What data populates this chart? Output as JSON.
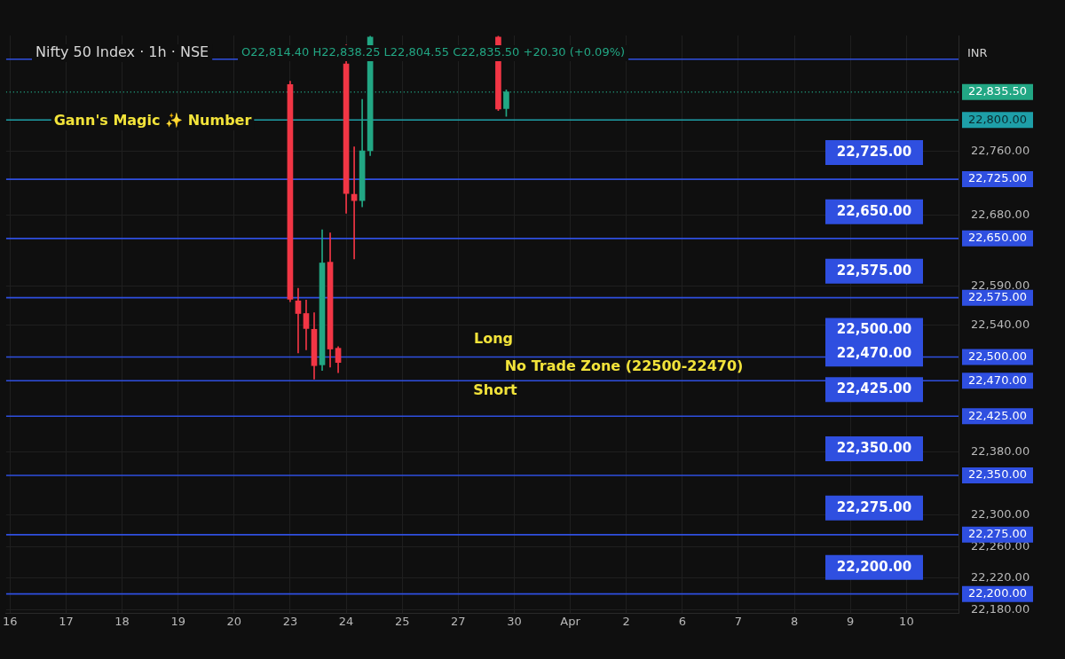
{
  "chart_data": {
    "type": "candlestick",
    "title": "Nifty 50 Index · 1h · NSE",
    "subtitle": "O22,814.40 H22,838.25 L22,804.55 C22,835.50 +20.30 (+0.09%)",
    "categories": [
      "16",
      null,
      null,
      null,
      null,
      null,
      null,
      "17",
      null,
      null,
      null,
      null,
      null,
      null,
      "18",
      null,
      null,
      null,
      null,
      null,
      null,
      "19",
      null,
      null,
      null,
      null,
      null,
      null,
      "20",
      null,
      null,
      null,
      null,
      null,
      null,
      "23",
      null,
      null,
      null,
      null,
      null,
      null,
      "24",
      null,
      null,
      null,
      null,
      null,
      null,
      "25",
      null,
      null,
      null,
      null,
      null,
      null,
      "27",
      null,
      null,
      null,
      null,
      null,
      null,
      "30",
      null,
      null,
      null,
      null,
      null,
      null,
      "Apr",
      null,
      null,
      null,
      null,
      null,
      null,
      "2",
      null,
      null,
      null,
      null,
      null,
      null,
      "6",
      null,
      null,
      null,
      null,
      null,
      null,
      "7",
      null,
      null,
      null,
      null,
      null,
      null,
      "8",
      null,
      null,
      null,
      null,
      null,
      null,
      "9",
      null,
      null,
      null,
      null,
      null,
      null,
      "10",
      null,
      null,
      null,
      null,
      null,
      null
    ],
    "ohlc": [
      null,
      null,
      null,
      null,
      null,
      null,
      null,
      null,
      null,
      null,
      null,
      null,
      null,
      null,
      null,
      null,
      null,
      null,
      null,
      null,
      null,
      null,
      null,
      null,
      null,
      null,
      null,
      null,
      null,
      null,
      null,
      null,
      null,
      null,
      null,
      [
        22845,
        22849,
        22570,
        22573
      ],
      [
        22571,
        22587,
        22505,
        22555
      ],
      [
        22555,
        22572,
        22509,
        22536
      ],
      [
        22535,
        22556,
        22472,
        22489
      ],
      [
        22490,
        22661,
        22483,
        22619
      ],
      [
        22620,
        22657,
        22487,
        22510
      ],
      [
        22511,
        22513,
        22480,
        22493
      ],
      [
        22871,
        22895,
        22682,
        22707
      ],
      [
        22706,
        22766,
        22624,
        22698
      ],
      [
        22698,
        22826,
        22690,
        22761
      ],
      [
        22761,
        22906,
        22755,
        22905
      ],
      null,
      null,
      null,
      null,
      null,
      null,
      null,
      null,
      null,
      null,
      null,
      null,
      null,
      null,
      null,
      [
        22905,
        22906,
        22812,
        22814
      ],
      [
        22814.4,
        22838.25,
        22804.55,
        22835.5
      ],
      null,
      null,
      null,
      null,
      null,
      null,
      null,
      null,
      null,
      null,
      null,
      null,
      null,
      null,
      null,
      null,
      null,
      null,
      null,
      null,
      null,
      null,
      null,
      null,
      null,
      null,
      null,
      null,
      null,
      null,
      null,
      null,
      null,
      null,
      null,
      null,
      null,
      null,
      null,
      null,
      null,
      null,
      null,
      null,
      null,
      null,
      null,
      null,
      null,
      null,
      null,
      null,
      null,
      null,
      null,
      null
    ],
    "colors": [
      null,
      null,
      null,
      null,
      null,
      null,
      null,
      null,
      null,
      null,
      null,
      null,
      null,
      null,
      null,
      null,
      null,
      null,
      null,
      null,
      null,
      null,
      null,
      null,
      null,
      null,
      null,
      null,
      null,
      null,
      null,
      null,
      null,
      null,
      null,
      "#f23645",
      "#f23645",
      "#f23645",
      "#f23645",
      "#22a784",
      "#f23645",
      "#f23645",
      "#f23645",
      "#f23645",
      "#22a784",
      "#22a784",
      null,
      null,
      null,
      null,
      null,
      null,
      null,
      null,
      null,
      null,
      null,
      null,
      null,
      null,
      null,
      "#f23645",
      "#22a784",
      null,
      null,
      null,
      null,
      null,
      null,
      null,
      null,
      null,
      null,
      null,
      null,
      null,
      null,
      null,
      null,
      null,
      null,
      null,
      null,
      null,
      null,
      null,
      null,
      null,
      null,
      null,
      null,
      null,
      null,
      null,
      null,
      null,
      null,
      null,
      null,
      null,
      null,
      null,
      null,
      null,
      null,
      null,
      null,
      null,
      null,
      null,
      null,
      null,
      null,
      null,
      null,
      null,
      null,
      null,
      null
    ],
    "ylim": [
      22176,
      22907
    ],
    "yticks": [
      {
        "value": 22180,
        "label": "22,180.00"
      },
      {
        "value": 22220,
        "label": "22,220.00"
      },
      {
        "value": 22260,
        "label": "22,260.00"
      },
      {
        "value": 22300,
        "label": "22,300.00"
      },
      {
        "value": 22380,
        "label": "22,380.00"
      },
      {
        "value": 22540,
        "label": "22,540.00"
      },
      {
        "value": 22590,
        "label": "22,590.00"
      },
      {
        "value": 22680,
        "label": "22,680.00"
      },
      {
        "value": 22760,
        "label": "22,760.00"
      }
    ],
    "grid": true,
    "ref_lines": [
      {
        "axis": "y",
        "value": 22877
      },
      {
        "axis": "y",
        "value": 22835.5,
        "label": "22,835.50",
        "color": "#22a784",
        "line_style": "dotted"
      },
      {
        "axis": "y",
        "value": 22800,
        "label": "22,800.00",
        "color": "#1e9fa8"
      },
      {
        "axis": "y",
        "value": 22725,
        "label": "22,725.00",
        "color": "#2f4fe0"
      },
      {
        "axis": "y",
        "value": 22650,
        "label": "22,650.00",
        "color": "#2f4fe0"
      },
      {
        "axis": "y",
        "value": 22575,
        "label": "22,575.00",
        "color": "#2f4fe0"
      },
      {
        "axis": "y",
        "value": 22500,
        "label": "22,500.00",
        "color": "#2f4fe0"
      },
      {
        "axis": "y",
        "value": 22470,
        "label": "22,470.00",
        "color": "#2f4fe0"
      },
      {
        "axis": "y",
        "value": 22425,
        "label": "22,425.00",
        "color": "#2f4fe0"
      },
      {
        "axis": "y",
        "value": 22350,
        "label": "22,350.00",
        "color": "#2f4fe0"
      },
      {
        "axis": "y",
        "value": 22275,
        "label": "22,275.00",
        "color": "#2f4fe0"
      },
      {
        "axis": "y",
        "value": 22200,
        "label": "22,200.00",
        "color": "#2f4fe0"
      }
    ],
    "annotations": [
      "Gann's Magic ✨ Number",
      "Long",
      "No Trade Zone (22500-22470)",
      "Short",
      "INR"
    ]
  }
}
